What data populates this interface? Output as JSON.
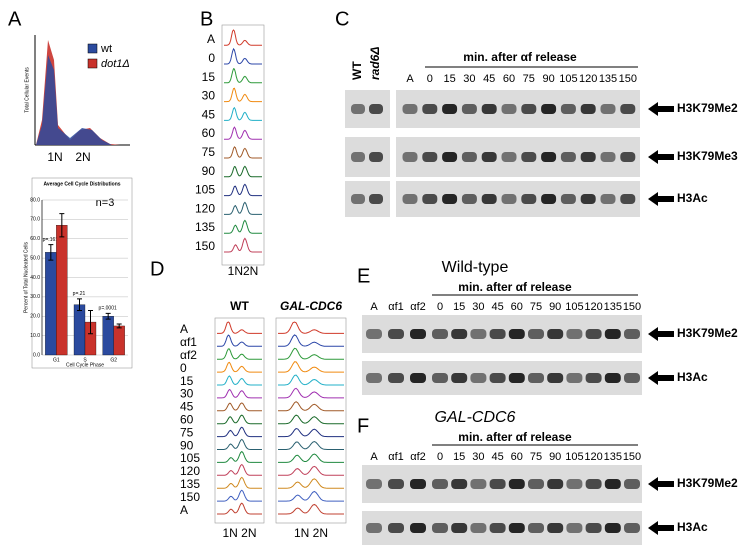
{
  "panels": {
    "A": {
      "label": "A",
      "flow_y_label": "Total Cellular Events",
      "x_labels": [
        "1N",
        "2N"
      ]
    },
    "B": {
      "label": "B",
      "rows": [
        "A",
        "0",
        "15",
        "30",
        "45",
        "60",
        "75",
        "90",
        "105",
        "120",
        "135",
        "150"
      ],
      "x_label": "1N2N"
    },
    "C": {
      "label": "C",
      "controls": [
        "WT",
        "rad6Δ"
      ],
      "header": "min. after αf release",
      "lanes": [
        "A",
        "0",
        "15",
        "30",
        "45",
        "60",
        "75",
        "90",
        "105",
        "120",
        "135",
        "150"
      ],
      "bands": [
        "H3K79Me2",
        "H3K79Me3",
        "H3Ac"
      ]
    },
    "D": {
      "label": "D",
      "columns": [
        "WT",
        "GAL-CDC6"
      ],
      "rows": [
        "A",
        "αf1",
        "αf2",
        "0",
        "15",
        "30",
        "45",
        "60",
        "75",
        "90",
        "105",
        "120",
        "135",
        "150",
        "A"
      ],
      "x_label": "1N 2N"
    },
    "E": {
      "label": "E",
      "title": "Wild-type",
      "header": "min. after αf release",
      "lanes": [
        "A",
        "αf1",
        "αf2",
        "0",
        "15",
        "30",
        "45",
        "60",
        "75",
        "90",
        "105",
        "120",
        "135",
        "150"
      ],
      "bands": [
        "H3K79Me2",
        "H3Ac"
      ]
    },
    "F": {
      "label": "F",
      "title": "GAL-CDC6",
      "header": "min. after αf release",
      "lanes": [
        "A",
        "αf1",
        "αf2",
        "0",
        "15",
        "30",
        "45",
        "60",
        "75",
        "90",
        "105",
        "120",
        "135",
        "150"
      ],
      "bands": [
        "H3K79Me2",
        "H3Ac"
      ]
    }
  },
  "chart_data": {
    "type": "bar",
    "title": "Average Cell Cycle Distributions",
    "annotation": "n=3",
    "y_label": "Percent of Total Nucleated Cells",
    "x_label": "Cell Cycle Phase",
    "categories": [
      "G1",
      "S",
      "G2"
    ],
    "series": [
      {
        "name": "wt",
        "color": "#2b4a9e",
        "values": [
          53,
          26,
          20
        ],
        "errors": [
          4,
          3,
          1.5
        ]
      },
      {
        "name": "dot1Δ",
        "color": "#c9322b",
        "values": [
          67,
          17,
          15
        ],
        "errors": [
          6,
          6,
          1
        ]
      }
    ],
    "p_values": [
      "p=.161",
      "p=.21",
      "p=.0001"
    ],
    "ylim": [
      0,
      80
    ],
    "yticks": [
      {
        "value": 0,
        "label": "0.0"
      },
      {
        "value": 10,
        "label": "10.0"
      },
      {
        "value": 20,
        "label": "20.0"
      },
      {
        "value": 30,
        "label": "30.0"
      },
      {
        "value": 40,
        "label": "40.0"
      },
      {
        "value": 50,
        "label": "50.0"
      },
      {
        "value": 60,
        "label": "60.0"
      },
      {
        "value": 70,
        "label": "70.0"
      },
      {
        "value": 80,
        "label": "80.0"
      }
    ],
    "grid": true
  }
}
